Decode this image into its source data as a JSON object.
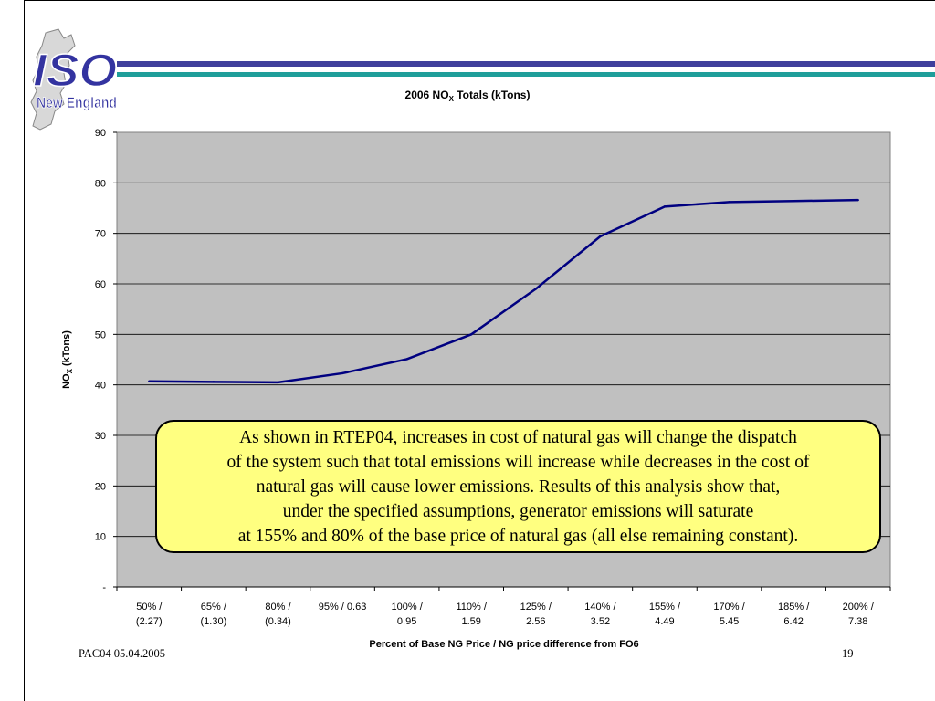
{
  "brand": {
    "logo_main": "ISO",
    "logo_sub": "New England",
    "colors": {
      "band_blue": "#3f3f9c",
      "band_teal": "#1f9e9a",
      "logo_blue": "#3333a0",
      "logo_teal": "#1fa3a0"
    }
  },
  "chart_data": {
    "type": "line",
    "title": "2006 NO",
    "title_sub": "X",
    "title_rest": " Totals (kTons)",
    "ylabel": "NO",
    "ylabel_sub": "X",
    "ylabel_rest": " (kTons)",
    "xlabel": "Percent of Base NG Price / NG price difference from FO6",
    "ylim": [
      0,
      90
    ],
    "y_ticks": [
      "-",
      "10",
      "20",
      "30",
      "40",
      "50",
      "60",
      "70",
      "80",
      "90"
    ],
    "categories": [
      [
        "50% /",
        "(2.27)"
      ],
      [
        "65% /",
        "(1.30)"
      ],
      [
        "80% /",
        "(0.34)"
      ],
      [
        "95% / 0.63"
      ],
      [
        "100% /",
        "0.95"
      ],
      [
        "110% /",
        "1.59"
      ],
      [
        "125% /",
        "2.56"
      ],
      [
        "140% /",
        "3.52"
      ],
      [
        "155% /",
        "4.49"
      ],
      [
        "170% /",
        "5.45"
      ],
      [
        "185% /",
        "6.42"
      ],
      [
        "200% /",
        "7.38"
      ]
    ],
    "values": [
      40.7,
      40.6,
      40.5,
      42.3,
      45.1,
      50.0,
      59.0,
      69.4,
      75.3,
      76.2,
      76.4,
      76.6
    ],
    "grid": true,
    "colors": {
      "plot_bg": "#c0c0c0",
      "line": "#000080",
      "grid": "#000000"
    }
  },
  "callout": {
    "lines": [
      "As shown in RTEP04, increases in cost of natural gas will change the dispatch",
      "of the system such that total emissions will increase while decreases in the cost of",
      "natural gas will cause lower emissions. Results of this analysis show that,",
      "under the specified assumptions, generator emissions will saturate",
      "at 155% and 80% of the base price of natural gas (all else remaining constant)."
    ],
    "background": "#ffff80"
  },
  "footer": {
    "left": "PAC04 05.04.2005",
    "page_number": "19"
  }
}
